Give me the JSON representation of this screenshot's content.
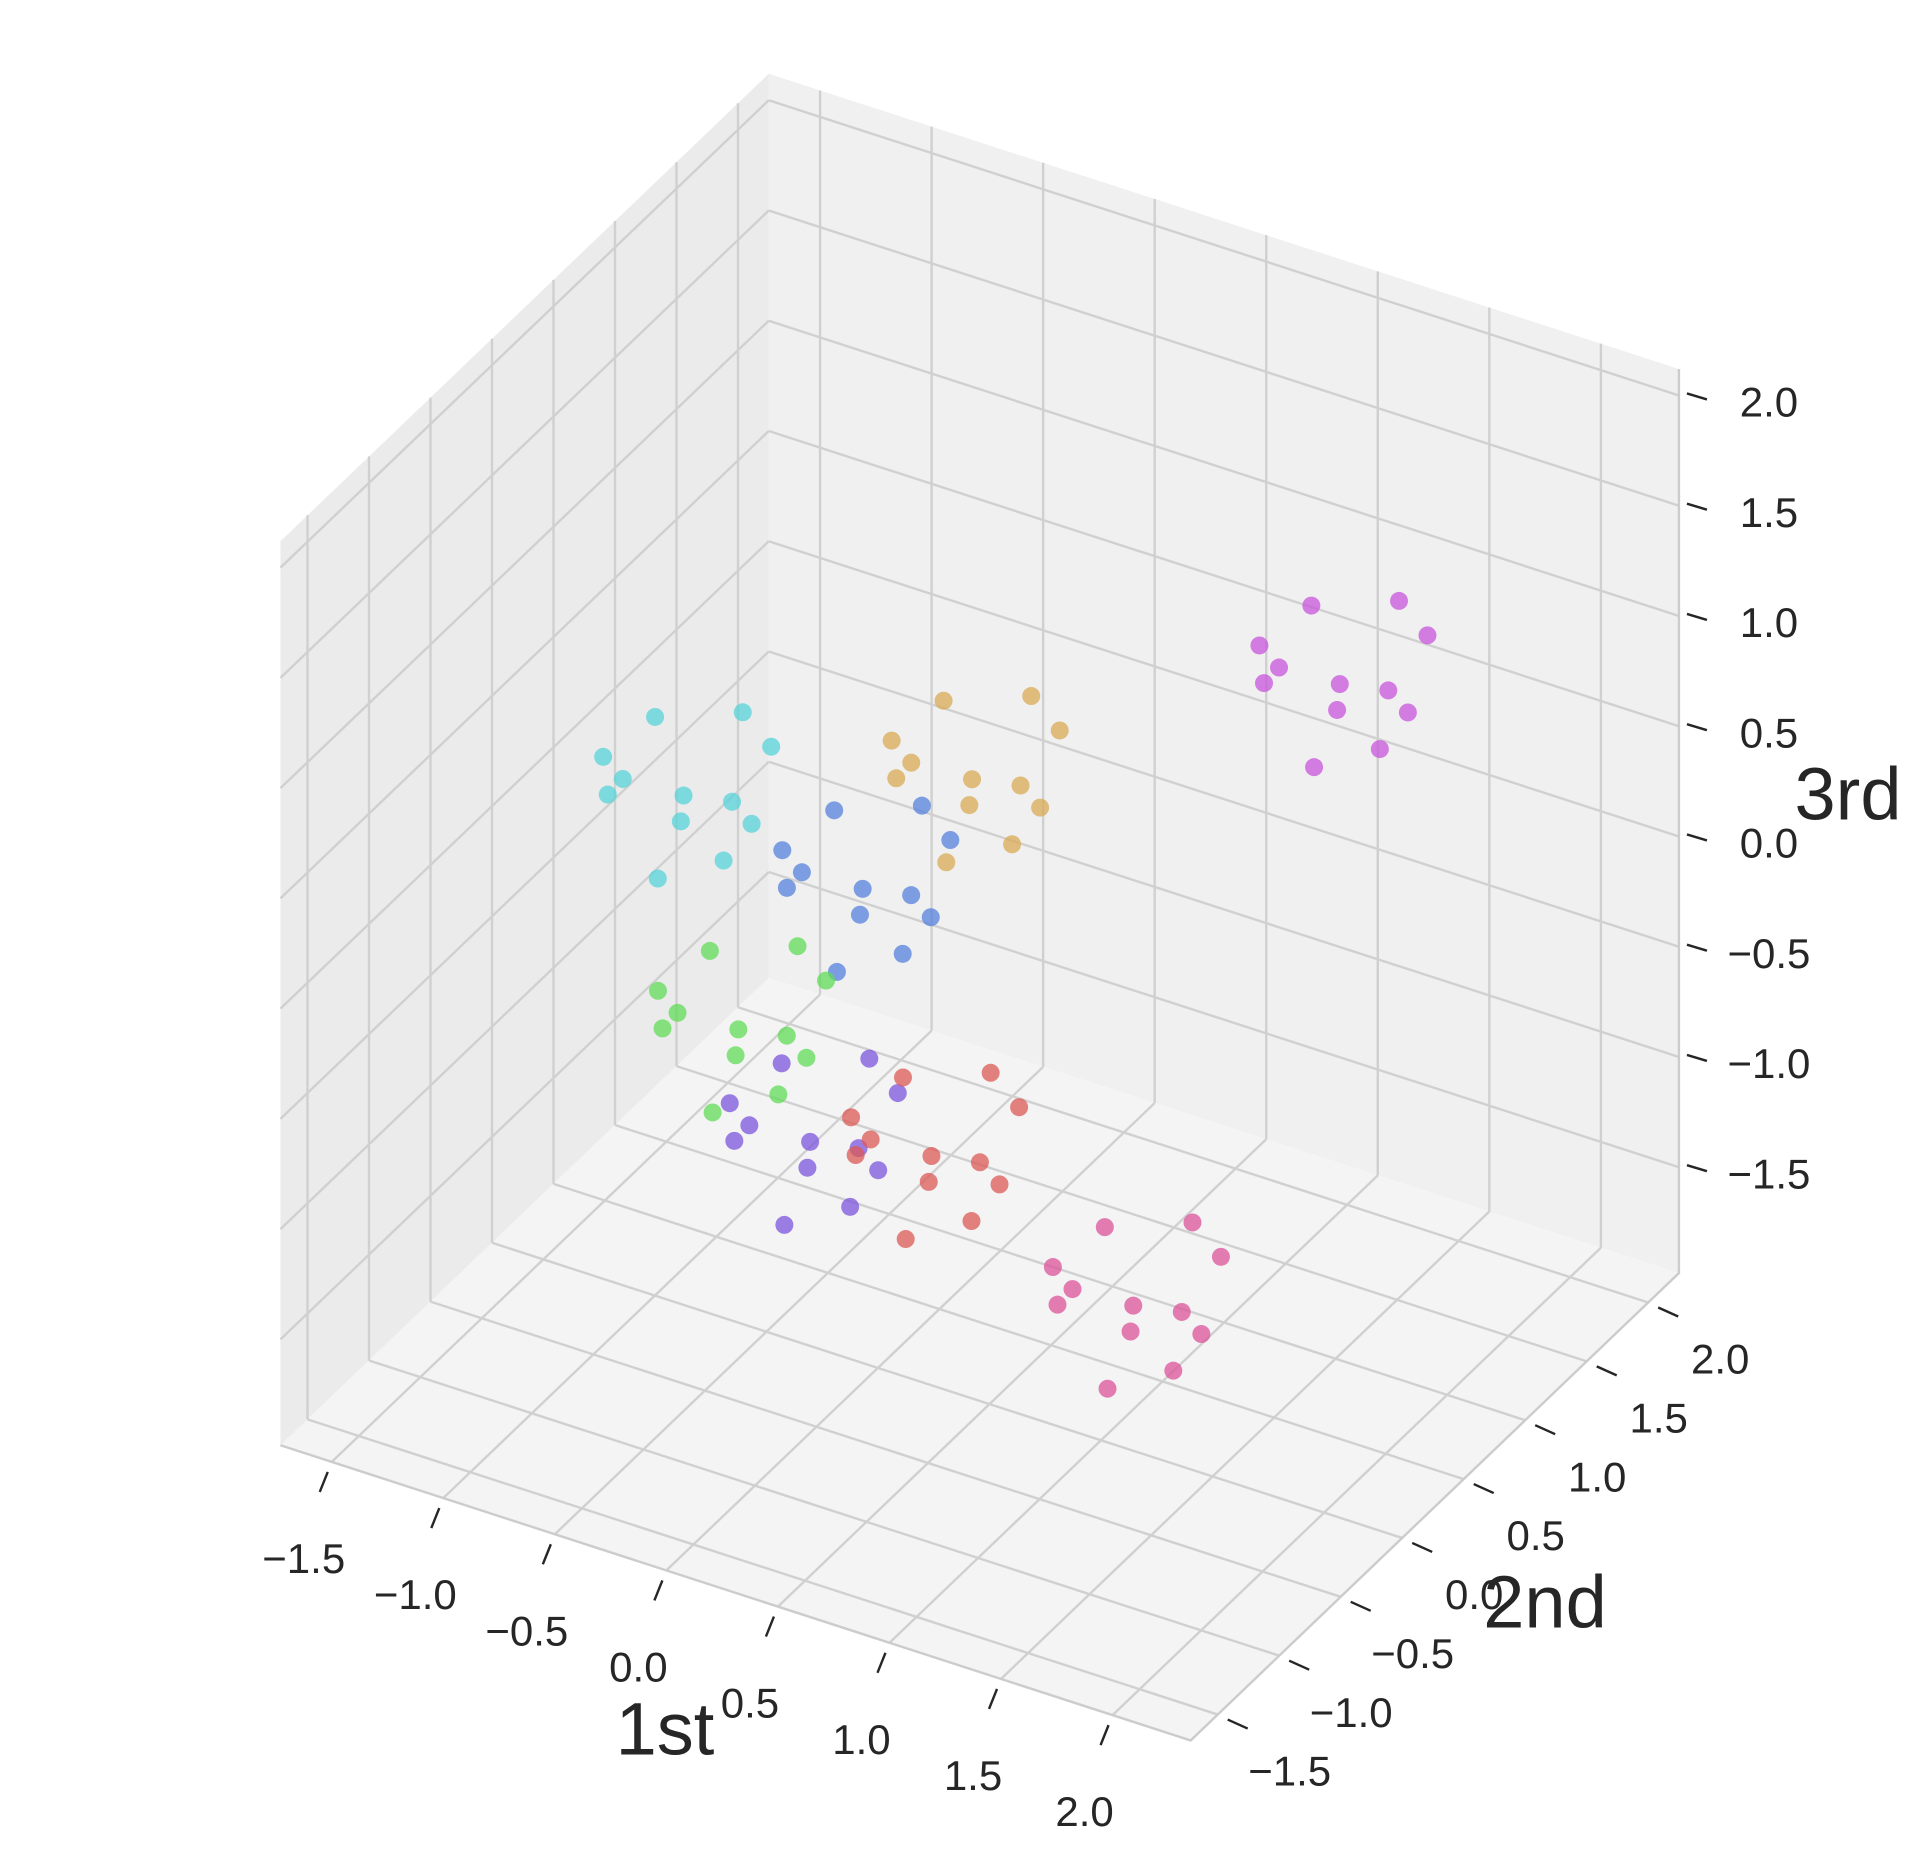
{
  "chart_data": {
    "type": "scatter3d",
    "xlabel": "1st",
    "ylabel": "2nd",
    "zlabel": "3rd",
    "xlim": [
      -1.73,
      2.35
    ],
    "ylim": [
      -1.72,
      2.25
    ],
    "zlim": [
      -1.98,
      2.12
    ],
    "xticks": [
      {
        "value": -1.5,
        "label": "−1.5"
      },
      {
        "value": -1.0,
        "label": "−1.0"
      },
      {
        "value": -0.5,
        "label": "−0.5"
      },
      {
        "value": 0,
        "label": "0.0"
      },
      0.5,
      {
        "value": 1,
        "label": "1.0"
      },
      1.5,
      {
        "value": 2,
        "label": "2.0"
      }
    ],
    "yticks": [
      {
        "value": -1.5,
        "label": "−1.5"
      },
      {
        "value": -1.0,
        "label": "−1.0"
      },
      {
        "value": -0.5,
        "label": "−0.5"
      },
      {
        "value": 0,
        "label": "0.0"
      },
      0.5,
      {
        "value": 1,
        "label": "1.0"
      },
      1.5,
      {
        "value": 2,
        "label": "2.0"
      }
    ],
    "zticks": [
      {
        "value": -1.5,
        "label": "−1.5"
      },
      {
        "value": -1.0,
        "label": "−1.0"
      },
      {
        "value": -0.5,
        "label": "−0.5"
      },
      {
        "value": 0,
        "label": "0.0"
      },
      0.5,
      {
        "value": 1,
        "label": "1.0"
      },
      1.5,
      {
        "value": 2,
        "label": "2.0"
      }
    ],
    "grid": true,
    "series": [
      {
        "color": "#d9aa55",
        "x": [
          -0.51,
          -0.26,
          -0.76,
          -0.41,
          -0.66,
          -0.21,
          -0.81,
          -0.46,
          -0.31,
          -0.61,
          -0.11,
          -0.96
        ],
        "y": [
          1.69,
          1.79,
          1.49,
          1.99,
          1.94,
          1.54,
          1.74,
          1.39,
          2.04,
          1.64,
          1.29,
          1.89
        ],
        "z": [
          -0.38,
          -0.48,
          -0.18,
          -0.13,
          -0.68,
          -0.23,
          -0.43,
          -0.58,
          -0.28,
          -0.03,
          -0.33,
          -0.63
        ]
      },
      {
        "color": "#5682dc",
        "x": [
          -0.3,
          -0.05,
          -0.55,
          -0.2,
          -0.45,
          0,
          -0.6,
          -0.25,
          -0.1,
          -0.4,
          0.1,
          -0.75
        ],
        "y": [
          0.42,
          0.52,
          0.22,
          0.72,
          0.67,
          0.27,
          0.47,
          0.12,
          0.77,
          0.37,
          0.02,
          0.62
        ],
        "z": [
          -0.13,
          -0.23,
          0.07,
          0.12,
          -0.43,
          0.02,
          -0.18,
          -0.33,
          -0.03,
          0.22,
          -0.08,
          -0.38
        ]
      },
      {
        "color": "#7c55dc",
        "x": [
          -0.1,
          0.15,
          -0.35,
          0,
          -0.25,
          0.2,
          -0.4,
          -0.05,
          0.1,
          -0.2,
          0.3,
          -0.55
        ],
        "y": [
          -0.37,
          -0.27,
          -0.57,
          -0.07,
          -0.12,
          -0.52,
          -0.32,
          -0.67,
          -0.02,
          -0.42,
          -0.77,
          -0.17
        ],
        "z": [
          -0.79,
          -0.89,
          -0.59,
          -0.54,
          -1.09,
          -0.64,
          -0.84,
          -0.99,
          -0.69,
          -0.44,
          -0.74,
          -1.04
        ]
      },
      {
        "color": "#dc5a55",
        "x": [
          0.51,
          0.76,
          0.26,
          0.61,
          0.36,
          0.81,
          0.21,
          0.56,
          0.71,
          0.41,
          0.91,
          0.06
        ],
        "y": [
          -0.49,
          -0.39,
          -0.69,
          -0.19,
          -0.24,
          -0.64,
          -0.44,
          -0.79,
          -0.14,
          -0.54,
          -0.89,
          -0.29
        ],
        "z": [
          -0.59,
          -0.69,
          -0.39,
          -0.34,
          -0.89,
          -0.44,
          -0.64,
          -0.79,
          -0.49,
          -0.24,
          -0.54,
          -0.84
        ]
      },
      {
        "color": "#62dc58",
        "x": [
          -0.51,
          -0.26,
          -0.76,
          -0.41,
          -0.66,
          -0.21,
          -0.81,
          -0.46,
          -0.31,
          -0.61,
          -0.11,
          -0.96
        ],
        "y": [
          -0.21,
          -0.11,
          -0.41,
          0.09,
          0.04,
          -0.36,
          -0.16,
          -0.51,
          0.14,
          -0.26,
          -0.61,
          -0.01
        ],
        "z": [
          -0.5,
          -0.6,
          -0.3,
          -0.25,
          -0.8,
          -0.35,
          -0.55,
          -0.7,
          -0.4,
          -0.15,
          -0.45,
          -0.75
        ]
      },
      {
        "color": "#57d3da",
        "x": [
          -0.91,
          -0.66,
          -1.16,
          -0.81,
          -1.06,
          -0.61,
          -1.21,
          -0.86,
          -0.71,
          -1.01,
          -0.51,
          -1.36
        ],
        "y": [
          0.07,
          0.17,
          -0.13,
          0.37,
          0.32,
          -0.08,
          0.12,
          -0.23,
          0.42,
          0.02,
          -0.33,
          0.27
        ],
        "z": [
          0.28,
          0.18,
          0.48,
          0.53,
          -0.02,
          0.43,
          0.23,
          0.08,
          0.38,
          0.63,
          0.33,
          0.03
        ]
      },
      {
        "color": "#c856dc",
        "x": [
          1.53,
          1.78,
          1.28,
          1.63,
          1.38,
          1.83,
          1.23,
          1.58,
          1.73,
          1.43,
          1.93,
          1.08
        ],
        "y": [
          0.98,
          1.08,
          0.78,
          1.28,
          1.23,
          0.83,
          1.03,
          0.68,
          1.33,
          0.93,
          0.58,
          1.18
        ],
        "z": [
          1.1,
          1.0,
          1.3,
          1.35,
          0.8,
          1.25,
          1.05,
          0.9,
          1.2,
          1.45,
          1.15,
          0.85
        ]
      },
      {
        "color": "#dc5499",
        "x": [
          1.74,
          1.99,
          1.49,
          1.84,
          1.59,
          2.04,
          1.44,
          1.79,
          1.94,
          1.64,
          2.14,
          1.29
        ],
        "y": [
          -1.08,
          -0.98,
          -1.28,
          -0.78,
          -0.83,
          -1.23,
          -1.03,
          -1.38,
          -0.73,
          -1.13,
          -1.48,
          -0.88
        ],
        "z": [
          -0.55,
          -0.65,
          -0.35,
          -0.3,
          -0.85,
          -0.4,
          -0.6,
          -0.75,
          -0.45,
          -0.2,
          -0.5,
          -0.8
        ]
      }
    ]
  }
}
